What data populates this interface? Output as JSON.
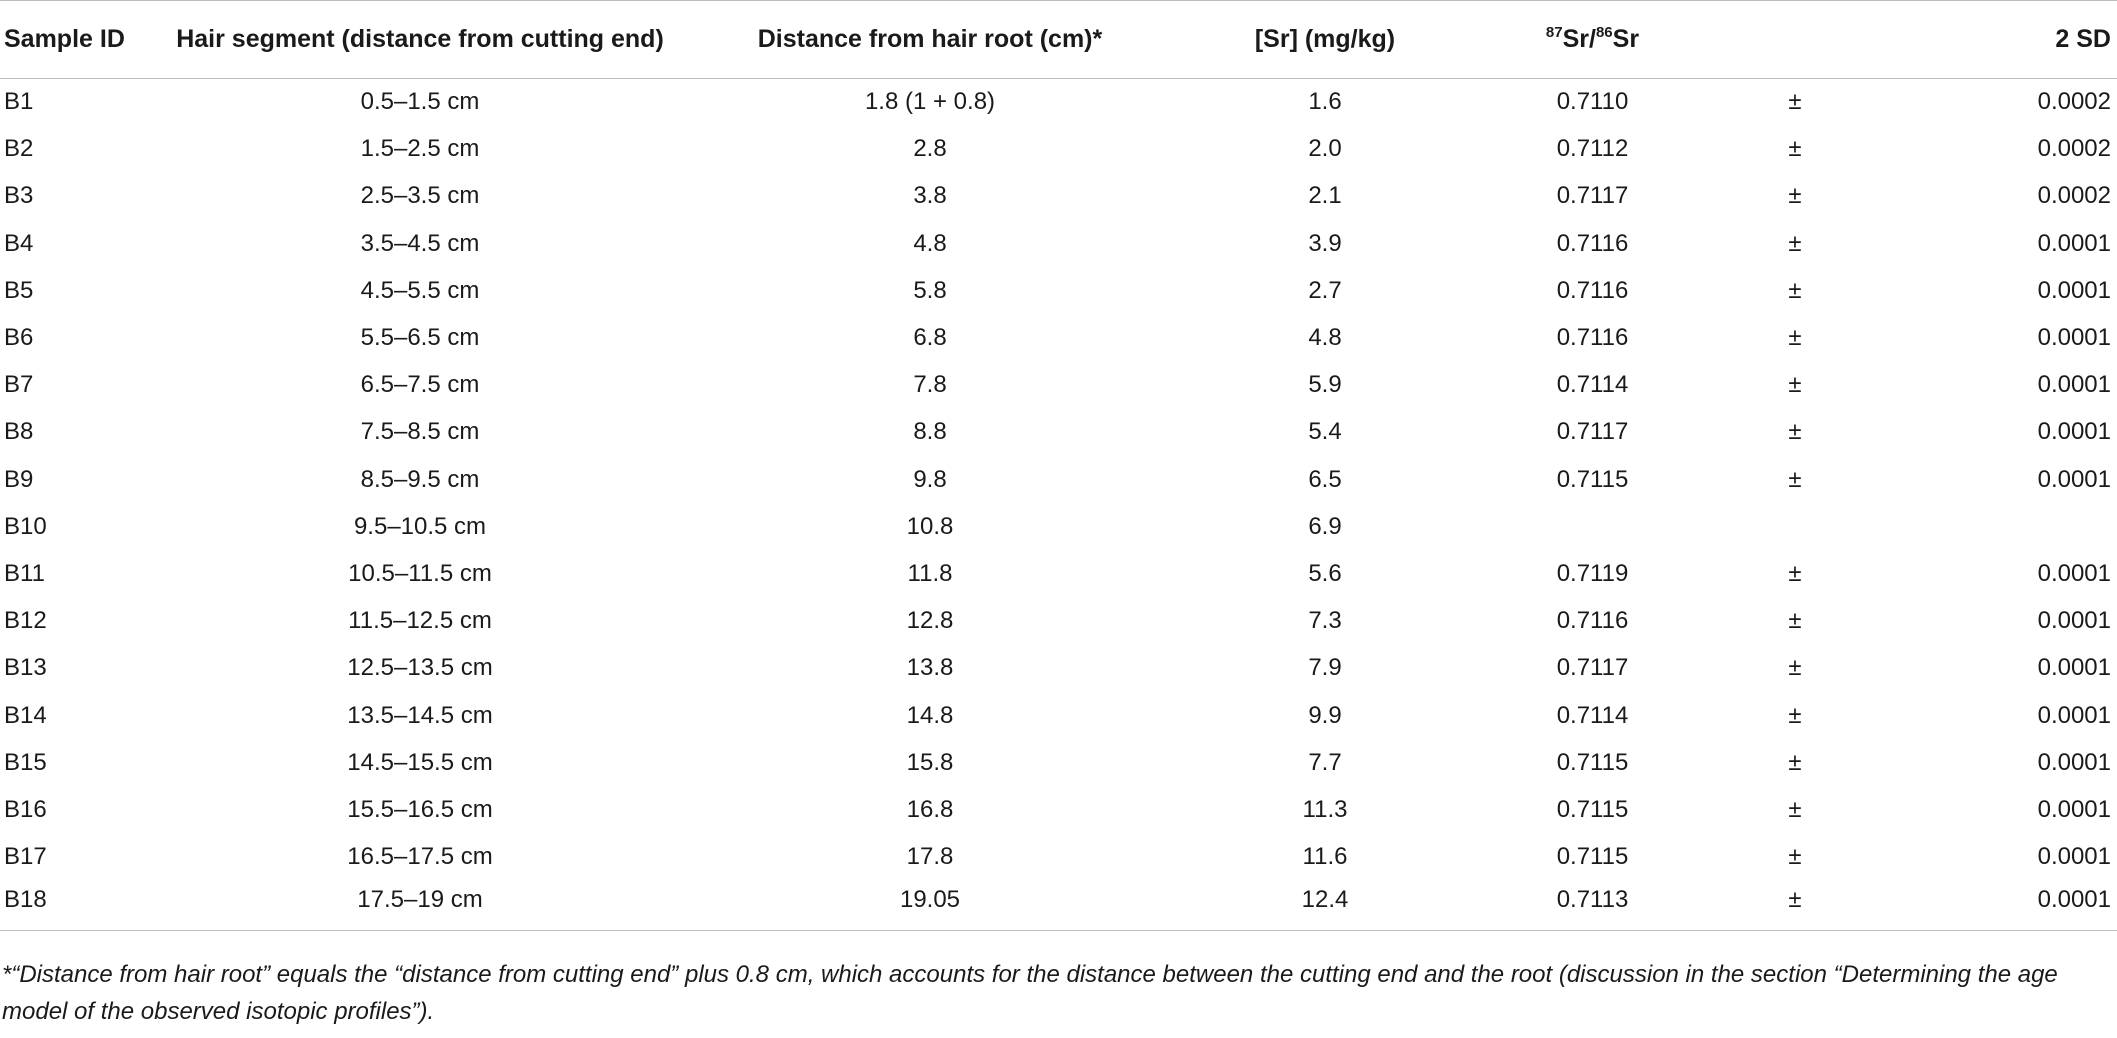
{
  "table": {
    "headers": {
      "sample_id": "Sample ID",
      "hair_segment": "Hair segment (distance from cutting end)",
      "distance_root": "Distance from hair root (cm)*",
      "sr_conc": "[Sr] (mg/kg)",
      "ratio_sup1": "87",
      "ratio_mid": "Sr/",
      "ratio_sup2": "86",
      "ratio_end": "Sr",
      "sd": "2 SD"
    },
    "rows": [
      {
        "id": "B1",
        "segment": "0.5–1.5 cm",
        "dist": "1.8 (1 + 0.8)",
        "sr": "1.6",
        "ratio": "0.7110",
        "pm": "±",
        "sd": "0.0002"
      },
      {
        "id": "B2",
        "segment": "1.5–2.5 cm",
        "dist": "2.8",
        "sr": "2.0",
        "ratio": "0.7112",
        "pm": "±",
        "sd": "0.0002"
      },
      {
        "id": "B3",
        "segment": "2.5–3.5 cm",
        "dist": "3.8",
        "sr": "2.1",
        "ratio": "0.7117",
        "pm": "±",
        "sd": "0.0002"
      },
      {
        "id": "B4",
        "segment": "3.5–4.5 cm",
        "dist": "4.8",
        "sr": "3.9",
        "ratio": "0.7116",
        "pm": "±",
        "sd": "0.0001"
      },
      {
        "id": "B5",
        "segment": "4.5–5.5 cm",
        "dist": "5.8",
        "sr": "2.7",
        "ratio": "0.7116",
        "pm": "±",
        "sd": "0.0001"
      },
      {
        "id": "B6",
        "segment": "5.5–6.5 cm",
        "dist": "6.8",
        "sr": "4.8",
        "ratio": "0.7116",
        "pm": "±",
        "sd": "0.0001"
      },
      {
        "id": "B7",
        "segment": "6.5–7.5 cm",
        "dist": "7.8",
        "sr": "5.9",
        "ratio": "0.7114",
        "pm": "±",
        "sd": "0.0001"
      },
      {
        "id": "B8",
        "segment": "7.5–8.5 cm",
        "dist": "8.8",
        "sr": "5.4",
        "ratio": "0.7117",
        "pm": "±",
        "sd": "0.0001"
      },
      {
        "id": "B9",
        "segment": "8.5–9.5 cm",
        "dist": "9.8",
        "sr": "6.5",
        "ratio": "0.7115",
        "pm": "±",
        "sd": "0.0001"
      },
      {
        "id": "B10",
        "segment": "9.5–10.5 cm",
        "dist": "10.8",
        "sr": "6.9",
        "ratio": "",
        "pm": "",
        "sd": ""
      },
      {
        "id": "B11",
        "segment": "10.5–11.5 cm",
        "dist": "11.8",
        "sr": "5.6",
        "ratio": "0.7119",
        "pm": "±",
        "sd": "0.0001"
      },
      {
        "id": "B12",
        "segment": "11.5–12.5 cm",
        "dist": "12.8",
        "sr": "7.3",
        "ratio": "0.7116",
        "pm": "±",
        "sd": "0.0001"
      },
      {
        "id": "B13",
        "segment": "12.5–13.5 cm",
        "dist": "13.8",
        "sr": "7.9",
        "ratio": "0.7117",
        "pm": "±",
        "sd": "0.0001"
      },
      {
        "id": "B14",
        "segment": "13.5–14.5 cm",
        "dist": "14.8",
        "sr": "9.9",
        "ratio": "0.7114",
        "pm": "±",
        "sd": "0.0001"
      },
      {
        "id": "B15",
        "segment": "14.5–15.5 cm",
        "dist": "15.8",
        "sr": "7.7",
        "ratio": "0.7115",
        "pm": "±",
        "sd": "0.0001"
      },
      {
        "id": "B16",
        "segment": "15.5–16.5 cm",
        "dist": "16.8",
        "sr": "11.3",
        "ratio": "0.7115",
        "pm": "±",
        "sd": "0.0001"
      },
      {
        "id": "B17",
        "segment": "16.5–17.5 cm",
        "dist": "17.8",
        "sr": "11.6",
        "ratio": "0.7115",
        "pm": "±",
        "sd": "0.0001"
      },
      {
        "id": "B18",
        "segment": "17.5–19 cm",
        "dist": "19.05",
        "sr": "12.4",
        "ratio": "0.7113",
        "pm": "±",
        "sd": "0.0001"
      }
    ]
  },
  "footnote": "*“Distance from hair root” equals the “distance from cutting end” plus 0.8 cm, which accounts for the distance between the cutting end and the root (discussion in the section “Determining the age model of the observed isotopic profiles”)."
}
